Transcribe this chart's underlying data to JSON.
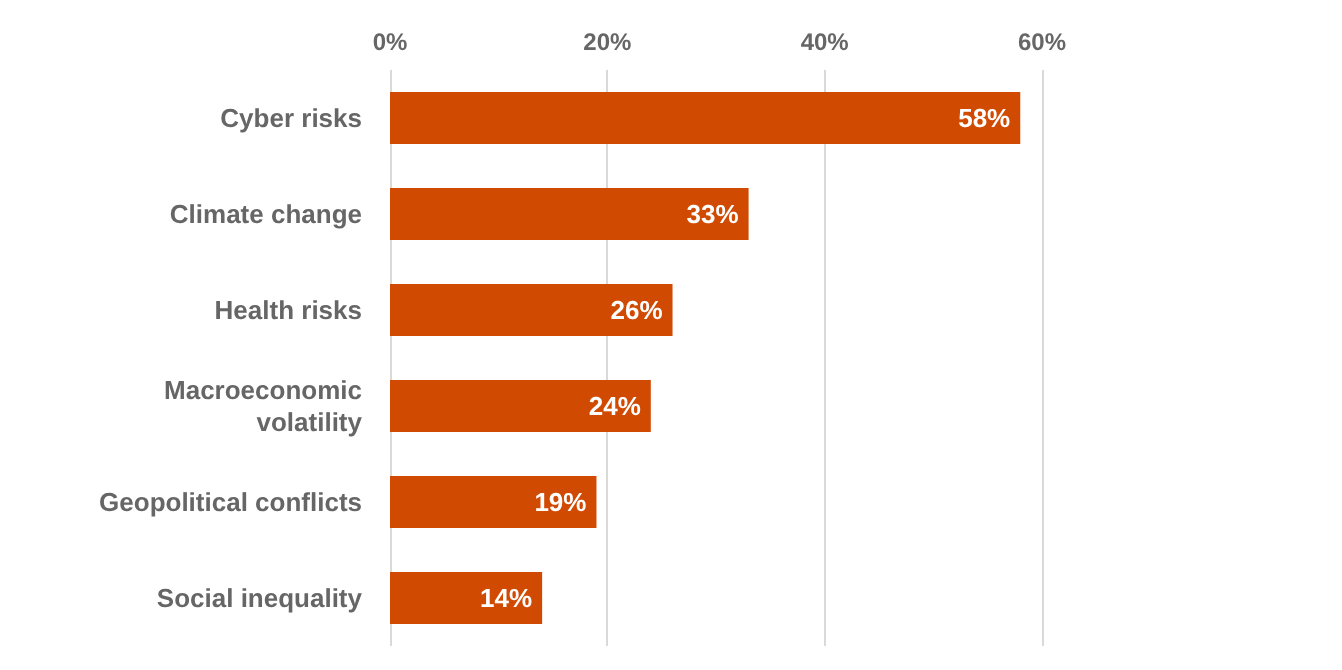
{
  "chart_data": {
    "type": "bar",
    "orientation": "horizontal",
    "categories": [
      "Cyber risks",
      "Climate change",
      "Health risks",
      "Macroeconomic volatility",
      "Geopolitical conflicts",
      "Social inequality"
    ],
    "values": [
      58,
      33,
      26,
      24,
      19,
      14
    ],
    "value_labels": [
      "58%",
      "33%",
      "26%",
      "24%",
      "19%",
      "14%"
    ],
    "color": "#d04a02",
    "xlim": [
      0,
      60
    ],
    "xticks": [
      {
        "value": 0,
        "label": "0%"
      },
      {
        "value": 20,
        "label": "20%"
      },
      {
        "value": 40,
        "label": "40%"
      },
      {
        "value": 60,
        "label": "60%"
      }
    ],
    "grid": "x"
  }
}
